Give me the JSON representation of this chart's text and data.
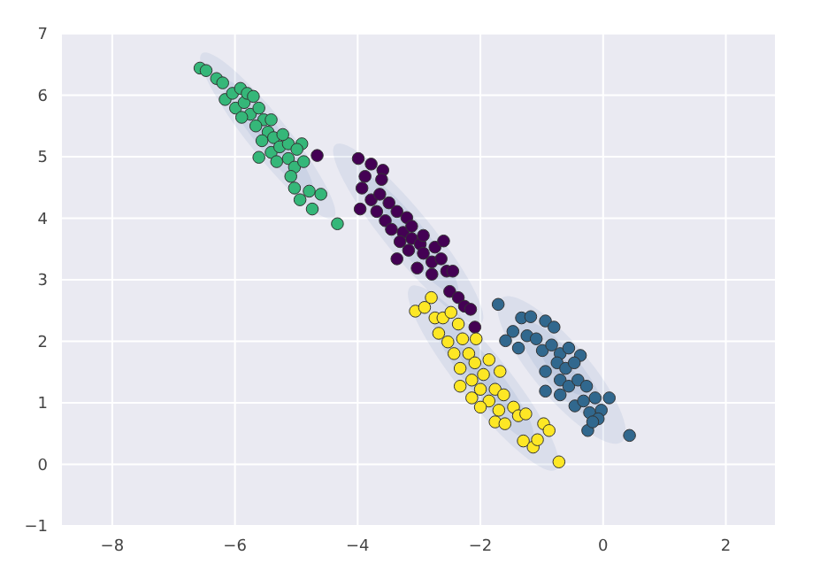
{
  "chart_data": {
    "type": "scatter",
    "xlim": [
      -8.82,
      2.8
    ],
    "ylim": [
      -1,
      7
    ],
    "xticks": [
      -8,
      -6,
      -4,
      -2,
      0,
      2
    ],
    "yticks": [
      -1,
      0,
      1,
      2,
      3,
      4,
      5,
      6,
      7
    ],
    "grid": true,
    "marker": "circle",
    "series": [
      {
        "color": "#35b779",
        "x": [
          -6.57,
          -6.47,
          -6.3,
          -6.2,
          -6.16,
          -6.04,
          -5.91,
          -5.99,
          -5.85,
          -5.75,
          -5.61,
          -5.53,
          -5.66,
          -5.46,
          -5.37,
          -5.56,
          -5.61,
          -5.41,
          -5.27,
          -5.13,
          -5.32,
          -5.13,
          -5.03,
          -4.91,
          -4.88,
          -5.09,
          -5.03,
          -4.94,
          -4.79,
          -4.74,
          -4.6,
          -4.33,
          -5.8,
          -5.7,
          -5.89,
          -5.41,
          -5.22,
          -4.99
        ],
        "values": [
          6.44,
          6.4,
          6.27,
          6.2,
          5.93,
          6.03,
          6.11,
          5.79,
          5.88,
          5.69,
          5.79,
          5.6,
          5.5,
          5.4,
          5.31,
          5.26,
          4.99,
          5.07,
          5.16,
          5.21,
          4.92,
          4.97,
          4.83,
          5.21,
          4.92,
          4.68,
          4.49,
          4.3,
          4.44,
          4.15,
          4.39,
          3.91,
          6.03,
          5.98,
          5.64,
          5.6,
          5.36,
          5.12
        ]
      },
      {
        "color": "#440154",
        "x": [
          -4.66,
          -3.99,
          -3.78,
          -3.59,
          -3.61,
          -3.93,
          -3.96,
          -3.78,
          -3.64,
          -3.49,
          -3.69,
          -3.55,
          -3.36,
          -3.2,
          -3.45,
          -3.26,
          -3.12,
          -3.12,
          -3.31,
          -2.98,
          -3.17,
          -2.93,
          -2.74,
          -2.6,
          -3.36,
          -3.03,
          -2.79,
          -2.64,
          -2.55,
          -2.79,
          -2.45,
          -2.5,
          -2.36,
          -2.26,
          -2.16,
          -2.09,
          -3.88,
          -2.93
        ],
        "values": [
          5.02,
          4.97,
          4.88,
          4.78,
          4.63,
          4.49,
          4.15,
          4.3,
          4.39,
          4.25,
          4.11,
          3.96,
          4.11,
          4.01,
          3.82,
          3.77,
          3.87,
          3.67,
          3.62,
          3.58,
          3.48,
          3.43,
          3.53,
          3.63,
          3.34,
          3.19,
          3.29,
          3.34,
          3.14,
          3.09,
          3.14,
          2.81,
          2.71,
          2.57,
          2.52,
          2.23,
          4.68,
          3.72
        ]
      },
      {
        "color": "#fde725",
        "x": [
          -3.06,
          -2.91,
          -2.8,
          -2.74,
          -2.61,
          -2.48,
          -2.68,
          -2.53,
          -2.36,
          -2.29,
          -2.07,
          -2.43,
          -2.19,
          -2.33,
          -2.09,
          -2.33,
          -2.14,
          -1.95,
          -1.86,
          -1.68,
          -2,
          -1.76,
          -2.14,
          -1.86,
          -1.62,
          -2,
          -1.7,
          -1.46,
          -1.76,
          -1.6,
          -1.38,
          -1.26,
          -1.3,
          -1.14,
          -1.07,
          -0.97,
          -0.88,
          -0.72
        ],
        "values": [
          2.49,
          2.55,
          2.71,
          2.38,
          2.38,
          2.47,
          2.13,
          1.99,
          2.28,
          2.04,
          2.04,
          1.8,
          1.8,
          1.56,
          1.65,
          1.27,
          1.37,
          1.46,
          1.7,
          1.51,
          1.22,
          1.22,
          1.08,
          1.03,
          1.13,
          0.93,
          0.88,
          0.93,
          0.69,
          0.66,
          0.79,
          0.82,
          0.38,
          0.28,
          0.4,
          0.66,
          0.55,
          0.04
        ]
      },
      {
        "color": "#31688e",
        "x": [
          -1.71,
          -1.59,
          -1.47,
          -1.33,
          -1.18,
          -1.38,
          -1.24,
          -1.09,
          -0.94,
          -0.8,
          -0.99,
          -0.84,
          -0.7,
          -0.56,
          -0.37,
          -0.94,
          -0.75,
          -0.61,
          -0.47,
          -0.94,
          -0.7,
          -0.56,
          -0.41,
          -0.27,
          -0.7,
          -0.46,
          -0.32,
          -0.13,
          0.1,
          -0.22,
          -0.03,
          -0.08,
          -0.25,
          0.43,
          -0.17
        ],
        "values": [
          2.6,
          2.01,
          2.16,
          2.38,
          2.4,
          1.89,
          2.09,
          2.04,
          2.33,
          2.23,
          1.85,
          1.94,
          1.8,
          1.89,
          1.77,
          1.51,
          1.65,
          1.56,
          1.65,
          1.19,
          1.37,
          1.27,
          1.37,
          1.27,
          1.13,
          0.95,
          1.03,
          1.08,
          1.08,
          0.84,
          0.88,
          0.74,
          0.55,
          0.47,
          0.69
        ]
      }
    ]
  }
}
